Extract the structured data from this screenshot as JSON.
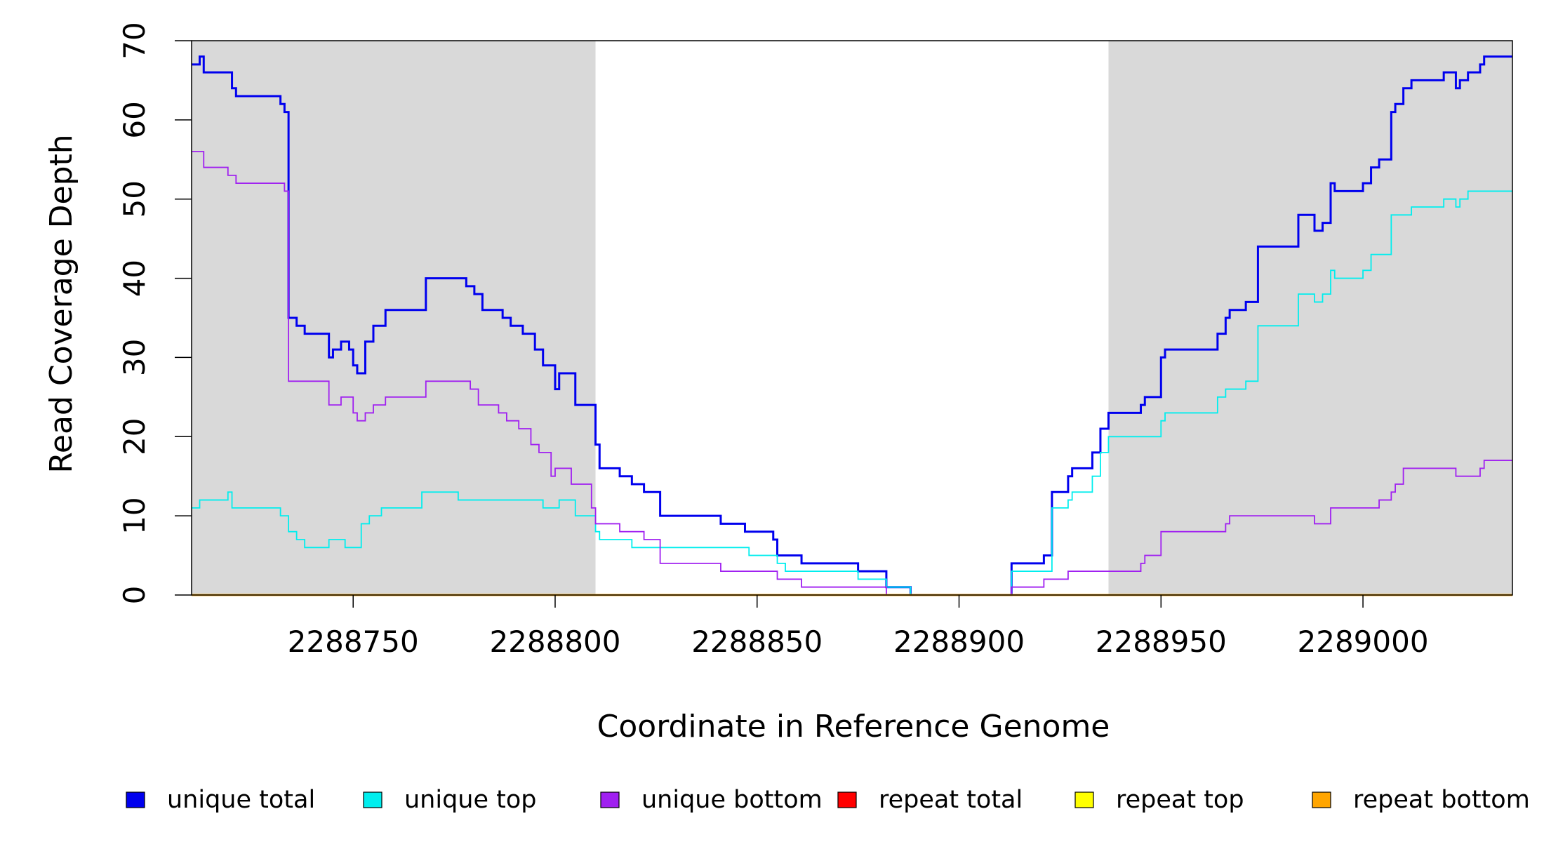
{
  "chart_data": {
    "type": "line",
    "line_style": "step",
    "xlabel": "Coordinate in Reference Genome",
    "ylabel": "Read Coverage Depth",
    "xlim": [
      2288710,
      2289037
    ],
    "ylim": [
      0,
      70
    ],
    "x_ticks": [
      2288750,
      2288800,
      2288850,
      2288900,
      2288950,
      2289000
    ],
    "x_tick_labels": [
      "2288750",
      "2288800",
      "2288850",
      "2288900",
      "2288950",
      "2289000"
    ],
    "y_ticks": [
      0,
      10,
      20,
      30,
      40,
      50,
      60,
      70
    ],
    "y_tick_labels": [
      "0",
      "10",
      "20",
      "30",
      "40",
      "50",
      "60",
      "70"
    ],
    "grid": false,
    "shaded_regions": [
      {
        "x_start": 2288710,
        "x_end": 2288810,
        "color": "#d9d9d9"
      },
      {
        "x_start": 2288937,
        "x_end": 2289037,
        "color": "#d9d9d9"
      }
    ],
    "legend_position": "bottom",
    "series": [
      {
        "name": "unique total",
        "color": "#0000ee",
        "points": [
          [
            2288710,
            67
          ],
          [
            2288712,
            68
          ],
          [
            2288713,
            66
          ],
          [
            2288720,
            64
          ],
          [
            2288721,
            63
          ],
          [
            2288732,
            62
          ],
          [
            2288733,
            61
          ],
          [
            2288734,
            35
          ],
          [
            2288736,
            34
          ],
          [
            2288738,
            33
          ],
          [
            2288744,
            30
          ],
          [
            2288745,
            31
          ],
          [
            2288747,
            32
          ],
          [
            2288749,
            31
          ],
          [
            2288750,
            29
          ],
          [
            2288751,
            28
          ],
          [
            2288753,
            32
          ],
          [
            2288755,
            34
          ],
          [
            2288758,
            36
          ],
          [
            2288768,
            40
          ],
          [
            2288778,
            39
          ],
          [
            2288780,
            38
          ],
          [
            2288782,
            36
          ],
          [
            2288787,
            35
          ],
          [
            2288789,
            34
          ],
          [
            2288792,
            33
          ],
          [
            2288795,
            31
          ],
          [
            2288797,
            29
          ],
          [
            2288800,
            26
          ],
          [
            2288801,
            28
          ],
          [
            2288805,
            24
          ],
          [
            2288810,
            19
          ],
          [
            2288811,
            16
          ],
          [
            2288816,
            15
          ],
          [
            2288819,
            14
          ],
          [
            2288822,
            13
          ],
          [
            2288826,
            10
          ],
          [
            2288841,
            9
          ],
          [
            2288847,
            8
          ],
          [
            2288854,
            7
          ],
          [
            2288855,
            5
          ],
          [
            2288861,
            4
          ],
          [
            2288875,
            3
          ],
          [
            2288882,
            1
          ],
          [
            2288888,
            0
          ],
          [
            2288913,
            4
          ],
          [
            2288921,
            5
          ],
          [
            2288923,
            13
          ],
          [
            2288927,
            15
          ],
          [
            2288928,
            16
          ],
          [
            2288933,
            18
          ],
          [
            2288935,
            21
          ],
          [
            2288937,
            23
          ],
          [
            2288945,
            24
          ],
          [
            2288946,
            25
          ],
          [
            2288950,
            30
          ],
          [
            2288951,
            31
          ],
          [
            2288964,
            33
          ],
          [
            2288966,
            35
          ],
          [
            2288967,
            36
          ],
          [
            2288971,
            37
          ],
          [
            2288974,
            44
          ],
          [
            2288984,
            48
          ],
          [
            2288988,
            46
          ],
          [
            2288990,
            47
          ],
          [
            2288992,
            52
          ],
          [
            2288993,
            51
          ],
          [
            2289000,
            52
          ],
          [
            2289002,
            54
          ],
          [
            2289004,
            55
          ],
          [
            2289007,
            61
          ],
          [
            2289008,
            62
          ],
          [
            2289010,
            64
          ],
          [
            2289012,
            65
          ],
          [
            2289020,
            66
          ],
          [
            2289023,
            64
          ],
          [
            2289024,
            65
          ],
          [
            2289026,
            66
          ],
          [
            2289029,
            67
          ],
          [
            2289030,
            68
          ],
          [
            2289037,
            68
          ]
        ]
      },
      {
        "name": "unique top",
        "color": "#00eeee",
        "points": [
          [
            2288710,
            11
          ],
          [
            2288712,
            12
          ],
          [
            2288719,
            13
          ],
          [
            2288720,
            11
          ],
          [
            2288732,
            10
          ],
          [
            2288734,
            8
          ],
          [
            2288736,
            7
          ],
          [
            2288738,
            6
          ],
          [
            2288744,
            7
          ],
          [
            2288748,
            6
          ],
          [
            2288752,
            9
          ],
          [
            2288754,
            10
          ],
          [
            2288757,
            11
          ],
          [
            2288767,
            13
          ],
          [
            2288776,
            12
          ],
          [
            2288797,
            11
          ],
          [
            2288801,
            12
          ],
          [
            2288805,
            10
          ],
          [
            2288810,
            8
          ],
          [
            2288811,
            7
          ],
          [
            2288819,
            6
          ],
          [
            2288848,
            5
          ],
          [
            2288855,
            4
          ],
          [
            2288857,
            3
          ],
          [
            2288875,
            2
          ],
          [
            2288882,
            1
          ],
          [
            2288888,
            0
          ],
          [
            2288913,
            3
          ],
          [
            2288923,
            11
          ],
          [
            2288927,
            12
          ],
          [
            2288928,
            13
          ],
          [
            2288933,
            15
          ],
          [
            2288935,
            18
          ],
          [
            2288937,
            20
          ],
          [
            2288950,
            22
          ],
          [
            2288951,
            23
          ],
          [
            2288964,
            25
          ],
          [
            2288966,
            26
          ],
          [
            2288971,
            27
          ],
          [
            2288974,
            34
          ],
          [
            2288984,
            38
          ],
          [
            2288988,
            37
          ],
          [
            2288990,
            38
          ],
          [
            2288992,
            41
          ],
          [
            2288993,
            40
          ],
          [
            2289000,
            41
          ],
          [
            2289002,
            43
          ],
          [
            2289007,
            48
          ],
          [
            2289012,
            49
          ],
          [
            2289020,
            50
          ],
          [
            2289023,
            49
          ],
          [
            2289024,
            50
          ],
          [
            2289026,
            51
          ],
          [
            2289037,
            51
          ]
        ]
      },
      {
        "name": "unique bottom",
        "color": "#a020f0",
        "points": [
          [
            2288710,
            56
          ],
          [
            2288713,
            54
          ],
          [
            2288719,
            53
          ],
          [
            2288721,
            52
          ],
          [
            2288733,
            51
          ],
          [
            2288734,
            27
          ],
          [
            2288744,
            24
          ],
          [
            2288747,
            25
          ],
          [
            2288750,
            23
          ],
          [
            2288751,
            22
          ],
          [
            2288753,
            23
          ],
          [
            2288755,
            24
          ],
          [
            2288758,
            25
          ],
          [
            2288768,
            27
          ],
          [
            2288779,
            26
          ],
          [
            2288781,
            24
          ],
          [
            2288786,
            23
          ],
          [
            2288788,
            22
          ],
          [
            2288791,
            21
          ],
          [
            2288794,
            19
          ],
          [
            2288796,
            18
          ],
          [
            2288799,
            15
          ],
          [
            2288800,
            16
          ],
          [
            2288804,
            14
          ],
          [
            2288809,
            11
          ],
          [
            2288810,
            9
          ],
          [
            2288816,
            8
          ],
          [
            2288822,
            7
          ],
          [
            2288826,
            4
          ],
          [
            2288841,
            3
          ],
          [
            2288855,
            2
          ],
          [
            2288861,
            1
          ],
          [
            2288882,
            0
          ],
          [
            2288913,
            1
          ],
          [
            2288921,
            2
          ],
          [
            2288927,
            3
          ],
          [
            2288945,
            4
          ],
          [
            2288946,
            5
          ],
          [
            2288950,
            8
          ],
          [
            2288966,
            9
          ],
          [
            2288967,
            10
          ],
          [
            2288988,
            9
          ],
          [
            2288992,
            11
          ],
          [
            2289004,
            12
          ],
          [
            2289007,
            13
          ],
          [
            2289008,
            14
          ],
          [
            2289010,
            16
          ],
          [
            2289023,
            15
          ],
          [
            2289029,
            16
          ],
          [
            2289030,
            17
          ],
          [
            2289037,
            17
          ]
        ]
      },
      {
        "name": "repeat total",
        "color": "#ff0000",
        "points": [
          [
            2288710,
            0
          ],
          [
            2289037,
            0
          ]
        ]
      },
      {
        "name": "repeat top",
        "color": "#ffff00",
        "points": [
          [
            2288710,
            0
          ],
          [
            2289037,
            0
          ]
        ]
      },
      {
        "name": "repeat bottom",
        "color": "#ffa500",
        "points": [
          [
            2288710,
            0
          ],
          [
            2289037,
            0
          ]
        ]
      }
    ]
  }
}
